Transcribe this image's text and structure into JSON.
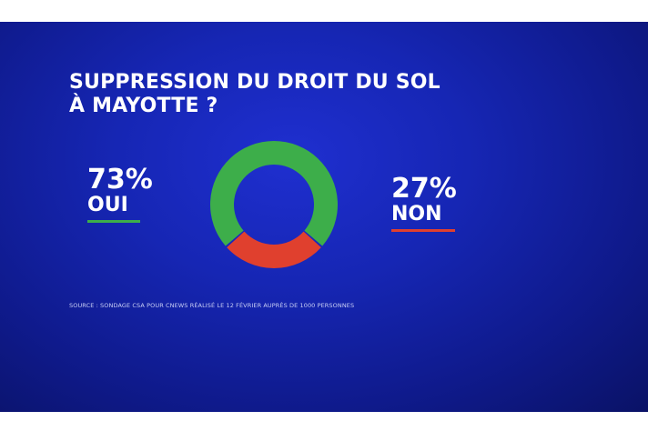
{
  "title_lines": [
    "SUPPRESSION DU DROIT DU SOL",
    "À MAYOTTE ?"
  ],
  "colors": {
    "background": "#1626b4",
    "oui": "#3dae4a",
    "non": "#e0402e",
    "text": "#ffffff"
  },
  "chart_data": {
    "type": "pie",
    "donut": true,
    "title": "SUPPRESSION DU DROIT DU SOL À MAYOTTE ?",
    "slices": [
      {
        "label": "OUI",
        "value": 73,
        "display": "73%",
        "color": "#3dae4a"
      },
      {
        "label": "NON",
        "value": 27,
        "display": "27%",
        "color": "#e0402e"
      }
    ]
  },
  "source": "SOURCE : SONDAGE CSA POUR CNEWS RÉALISÉ LE 12 FÉVRIER AUPRÈS DE 1000 PERSONNES"
}
